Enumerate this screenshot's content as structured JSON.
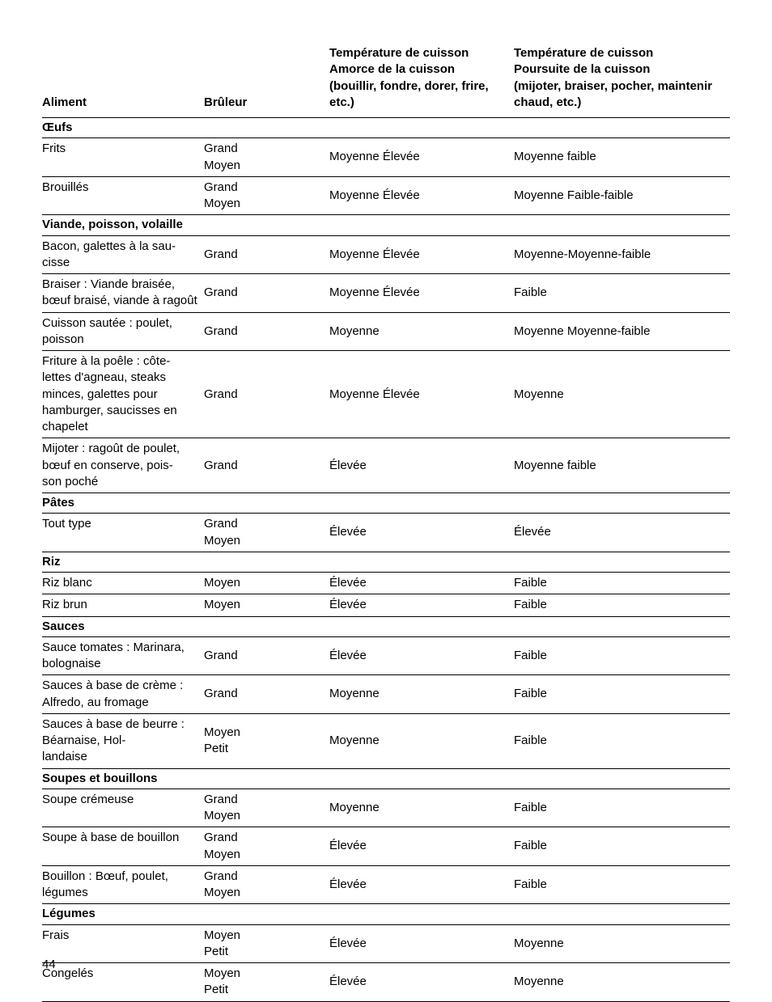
{
  "page_number": "44",
  "headers": {
    "col1": "Aliment",
    "col2": "Brûleur",
    "col3_l1": "Température de cuisson",
    "col3_l2": "Amorce de la cuisson",
    "col3_l3": "(bouillir, fondre, dorer, frire, etc.)",
    "col4_l1": "Température de cuisson",
    "col4_l2": "Poursuite de la cuisson",
    "col4_l3": "(mijoter, braiser, pocher, maintenir chaud, etc.)"
  },
  "sections": [
    {
      "title": "Œufs",
      "rows": [
        {
          "aliment": "Frits",
          "bruleur": "Grand\nMoyen",
          "amorce": "Moyenne Élevée",
          "poursuite": "Moyenne faible"
        },
        {
          "aliment": "Brouillés",
          "bruleur": "Grand\nMoyen",
          "amorce": "Moyenne Élevée",
          "poursuite": "Moyenne Faible-faible"
        }
      ]
    },
    {
      "title": "Viande, poisson, volaille",
      "rows": [
        {
          "aliment": "Bacon, galettes à la sau-\ncisse",
          "bruleur": "Grand",
          "amorce": "Moyenne Élevée",
          "poursuite": "Moyenne-Moyenne-faible"
        },
        {
          "aliment": "Braiser : Viande braisée, bœuf braisé, viande à ragoût",
          "bruleur": "Grand",
          "amorce": "Moyenne Élevée",
          "poursuite": "Faible"
        },
        {
          "aliment": "Cuisson sautée : poulet, poisson",
          "bruleur": "Grand",
          "amorce": "Moyenne",
          "poursuite": "Moyenne Moyenne-faible"
        },
        {
          "aliment": "Friture à la poêle : côte-\nlettes d'agneau, steaks minces, galettes pour hamburger, saucisses en chapelet",
          "bruleur": "Grand",
          "amorce": "Moyenne Élevée",
          "poursuite": "Moyenne"
        },
        {
          "aliment": "Mijoter : ragoût de poulet, bœuf en conserve, pois-\nson poché",
          "bruleur": "Grand",
          "amorce": "Élevée",
          "poursuite": "Moyenne faible"
        }
      ]
    },
    {
      "title": "Pâtes",
      "rows": [
        {
          "aliment": "Tout type",
          "bruleur": "Grand\nMoyen",
          "amorce": "Élevée",
          "poursuite": "Élevée"
        }
      ]
    },
    {
      "title": "Riz",
      "rows": [
        {
          "aliment": "Riz blanc",
          "bruleur": "Moyen",
          "amorce": "Élevée",
          "poursuite": "Faible"
        },
        {
          "aliment": "Riz brun",
          "bruleur": "Moyen",
          "amorce": "Élevée",
          "poursuite": "Faible"
        }
      ]
    },
    {
      "title": "Sauces",
      "rows": [
        {
          "aliment": "Sauce tomates : Marinara, bolognaise",
          "bruleur": "Grand",
          "amorce": "Élevée",
          "poursuite": "Faible"
        },
        {
          "aliment": "Sauces à base de crème : Alfredo, au fromage",
          "bruleur": "Grand",
          "amorce": "Moyenne",
          "poursuite": "Faible"
        },
        {
          "aliment": "Sauces à base de beurre : Béarnaise, Hol-\nlandaise",
          "bruleur": "Moyen\nPetit",
          "amorce": "Moyenne",
          "poursuite": "Faible"
        }
      ]
    },
    {
      "title": "Soupes et bouillons",
      "rows": [
        {
          "aliment": "Soupe crémeuse",
          "bruleur": "Grand\nMoyen",
          "amorce": "Moyenne",
          "poursuite": "Faible"
        },
        {
          "aliment": "Soupe à base de bouillon",
          "bruleur": "Grand\nMoyen",
          "amorce": "Élevée",
          "poursuite": "Faible"
        },
        {
          "aliment": "Bouillon : Bœuf, poulet, légumes",
          "bruleur": "Grand\nMoyen",
          "amorce": "Élevée",
          "poursuite": "Faible"
        }
      ]
    },
    {
      "title": "Légumes",
      "rows": [
        {
          "aliment": "Frais",
          "bruleur": "Moyen\nPetit",
          "amorce": "Élevée",
          "poursuite": "Moyenne"
        },
        {
          "aliment": "Congelés",
          "bruleur": "Moyen\nPetit",
          "amorce": "Élevée",
          "poursuite": "Moyenne"
        }
      ]
    }
  ]
}
